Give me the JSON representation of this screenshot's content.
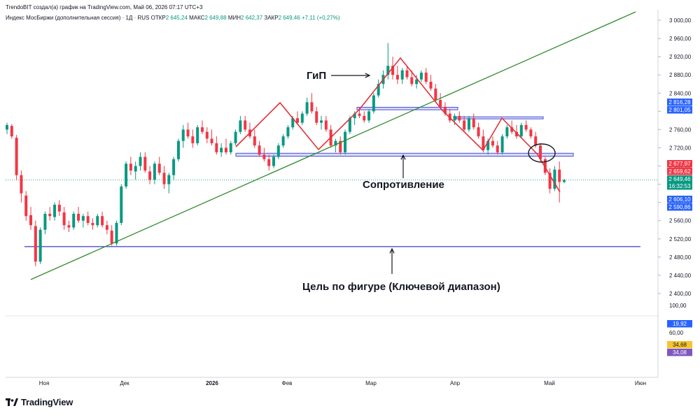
{
  "header": {
    "created_by": "TrendoBIT создал(а) график на TradingView.com, Май 06, 2026 07:17 UTC+3",
    "instrument": "Индекс МосБиржи (дополнительная сессия) · 1Д · RUS",
    "open_label": "ОТКР",
    "open_value": "2 645,24",
    "high_label": "МАКС",
    "high_value": "2 649,88",
    "low_label": "МИН",
    "low_value": "2 642,37",
    "close_label": "ЗАКР",
    "close_value": "2 649,46",
    "change_value": "+7,11 (+0,27%)"
  },
  "logo": {
    "text": "TradingView"
  },
  "annotations": {
    "hns": "ГиП",
    "resistance": "Сопротивление",
    "target": "Цель по фигуре (Ключевой диапазон)"
  },
  "colors": {
    "up": "#089981",
    "down": "#f23645",
    "pattern": "#e0313a",
    "trendline": "#2e8b2e",
    "zone_fill": "#c9cdf7",
    "zone_stroke": "#4a4fd6",
    "target_line": "#3a3fbf",
    "badge_blue": "#2962ff",
    "badge_red": "#f23645",
    "badge_green": "#089981",
    "badge_yellow": "#f7c531",
    "badge_purple": "#7e57c2"
  },
  "chart_data": {
    "type": "candlestick",
    "timeframe": "1Д",
    "price_axis": {
      "range": [
        2370,
        3010
      ],
      "ticks": [
        "3 000,00",
        "2 960,00",
        "2 920,00",
        "2 880,00",
        "2 840,00",
        "2 800,00",
        "2 760,00",
        "2 720,00",
        "2 680,00",
        "2 640,00",
        "2 600,00",
        "2 560,00",
        "2 520,00",
        "2 480,00",
        "2 440,00",
        "2 400,00"
      ]
    },
    "indicator_axis": {
      "ticks": [
        "100,00",
        "60,00"
      ]
    },
    "time_axis": [
      "Ноя",
      "Дек",
      "2026",
      "Фев",
      "Мар",
      "Апр",
      "Май",
      "Июн"
    ],
    "badges": [
      {
        "text": "2 816,28",
        "color": "blue"
      },
      {
        "text": "2 801,05",
        "color": "blue"
      },
      {
        "text": "2 677,97",
        "color": "red"
      },
      {
        "text": "2 659,62",
        "color": "red"
      },
      {
        "text": "2 649,46",
        "color": "green"
      },
      {
        "text": "16:32:53",
        "color": "green"
      },
      {
        "text": "2 606,10",
        "color": "blue"
      },
      {
        "text": "2 590,86",
        "color": "blue"
      },
      {
        "text": "19,92",
        "color": "blue"
      },
      {
        "text": "34,68",
        "color": "yellow"
      },
      {
        "text": "34,08",
        "color": "purple"
      }
    ],
    "levels": {
      "resistance_zone": [
        2703,
        2708
      ],
      "upper_zone_1": [
        2805,
        2809
      ],
      "upper_zone_2": [
        2785,
        2788
      ],
      "target": 2503
    },
    "candles": [
      [
        2760,
        2775,
        2750,
        2770
      ],
      [
        2768,
        2772,
        2740,
        2745
      ],
      [
        2742,
        2748,
        2650,
        2660
      ],
      [
        2660,
        2670,
        2600,
        2620
      ],
      [
        2615,
        2625,
        2560,
        2570
      ],
      [
        2572,
        2590,
        2540,
        2550
      ],
      [
        2548,
        2560,
        2460,
        2470
      ],
      [
        2470,
        2545,
        2465,
        2540
      ],
      [
        2540,
        2580,
        2530,
        2575
      ],
      [
        2575,
        2590,
        2560,
        2570
      ],
      [
        2568,
        2600,
        2560,
        2595
      ],
      [
        2595,
        2605,
        2570,
        2580
      ],
      [
        2578,
        2590,
        2540,
        2550
      ],
      [
        2550,
        2560,
        2535,
        2545
      ],
      [
        2545,
        2580,
        2540,
        2575
      ],
      [
        2575,
        2590,
        2555,
        2560
      ],
      [
        2560,
        2575,
        2545,
        2570
      ],
      [
        2570,
        2580,
        2550,
        2555
      ],
      [
        2555,
        2565,
        2540,
        2550
      ],
      [
        2550,
        2575,
        2545,
        2570
      ],
      [
        2570,
        2580,
        2545,
        2550
      ],
      [
        2550,
        2560,
        2530,
        2540
      ],
      [
        2538,
        2550,
        2505,
        2510
      ],
      [
        2510,
        2560,
        2505,
        2555
      ],
      [
        2555,
        2640,
        2550,
        2635
      ],
      [
        2635,
        2690,
        2630,
        2685
      ],
      [
        2685,
        2700,
        2660,
        2670
      ],
      [
        2668,
        2690,
        2650,
        2680
      ],
      [
        2680,
        2710,
        2670,
        2700
      ],
      [
        2700,
        2710,
        2665,
        2670
      ],
      [
        2668,
        2680,
        2640,
        2650
      ],
      [
        2650,
        2690,
        2640,
        2685
      ],
      [
        2685,
        2700,
        2660,
        2665
      ],
      [
        2665,
        2680,
        2630,
        2640
      ],
      [
        2640,
        2665,
        2620,
        2660
      ],
      [
        2660,
        2700,
        2650,
        2695
      ],
      [
        2695,
        2740,
        2690,
        2735
      ],
      [
        2735,
        2770,
        2720,
        2760
      ],
      [
        2760,
        2775,
        2740,
        2745
      ],
      [
        2745,
        2760,
        2720,
        2730
      ],
      [
        2730,
        2770,
        2725,
        2765
      ],
      [
        2765,
        2780,
        2750,
        2755
      ],
      [
        2755,
        2765,
        2730,
        2740
      ],
      [
        2740,
        2760,
        2725,
        2730
      ],
      [
        2730,
        2745,
        2705,
        2710
      ],
      [
        2710,
        2730,
        2700,
        2720
      ],
      [
        2720,
        2740,
        2705,
        2710
      ],
      [
        2710,
        2735,
        2705,
        2730
      ],
      [
        2730,
        2760,
        2725,
        2755
      ],
      [
        2755,
        2790,
        2750,
        2780
      ],
      [
        2780,
        2790,
        2755,
        2760
      ],
      [
        2760,
        2775,
        2740,
        2745
      ],
      [
        2745,
        2760,
        2720,
        2725
      ],
      [
        2725,
        2735,
        2700,
        2705
      ],
      [
        2705,
        2720,
        2690,
        2695
      ],
      [
        2695,
        2705,
        2670,
        2680
      ],
      [
        2680,
        2705,
        2675,
        2700
      ],
      [
        2700,
        2730,
        2695,
        2725
      ],
      [
        2725,
        2750,
        2720,
        2745
      ],
      [
        2745,
        2770,
        2740,
        2765
      ],
      [
        2765,
        2790,
        2760,
        2785
      ],
      [
        2785,
        2800,
        2770,
        2775
      ],
      [
        2775,
        2800,
        2770,
        2795
      ],
      [
        2795,
        2830,
        2790,
        2820
      ],
      [
        2820,
        2840,
        2795,
        2800
      ],
      [
        2800,
        2810,
        2770,
        2775
      ],
      [
        2775,
        2790,
        2760,
        2780
      ],
      [
        2780,
        2790,
        2755,
        2760
      ],
      [
        2760,
        2770,
        2720,
        2725
      ],
      [
        2725,
        2740,
        2710,
        2735
      ],
      [
        2735,
        2745,
        2705,
        2710
      ],
      [
        2710,
        2760,
        2705,
        2755
      ],
      [
        2755,
        2790,
        2750,
        2785
      ],
      [
        2785,
        2800,
        2770,
        2795
      ],
      [
        2795,
        2810,
        2785,
        2790
      ],
      [
        2790,
        2800,
        2775,
        2780
      ],
      [
        2780,
        2805,
        2775,
        2800
      ],
      [
        2800,
        2840,
        2795,
        2835
      ],
      [
        2835,
        2870,
        2830,
        2860
      ],
      [
        2860,
        2890,
        2850,
        2880
      ],
      [
        2880,
        2950,
        2870,
        2900
      ],
      [
        2900,
        2920,
        2870,
        2880
      ],
      [
        2880,
        2900,
        2860,
        2870
      ],
      [
        2870,
        2895,
        2860,
        2890
      ],
      [
        2890,
        2900,
        2870,
        2875
      ],
      [
        2875,
        2890,
        2855,
        2860
      ],
      [
        2860,
        2880,
        2850,
        2870
      ],
      [
        2870,
        2890,
        2865,
        2885
      ],
      [
        2885,
        2895,
        2860,
        2865
      ],
      [
        2865,
        2880,
        2845,
        2850
      ],
      [
        2850,
        2860,
        2820,
        2825
      ],
      [
        2825,
        2840,
        2805,
        2810
      ],
      [
        2810,
        2820,
        2790,
        2795
      ],
      [
        2795,
        2805,
        2775,
        2780
      ],
      [
        2780,
        2795,
        2770,
        2790
      ],
      [
        2790,
        2800,
        2775,
        2780
      ],
      [
        2780,
        2790,
        2755,
        2760
      ],
      [
        2760,
        2790,
        2755,
        2785
      ],
      [
        2785,
        2795,
        2760,
        2765
      ],
      [
        2765,
        2775,
        2740,
        2745
      ],
      [
        2745,
        2760,
        2710,
        2715
      ],
      [
        2715,
        2740,
        2705,
        2735
      ],
      [
        2735,
        2745,
        2720,
        2725
      ],
      [
        2725,
        2735,
        2705,
        2710
      ],
      [
        2710,
        2750,
        2705,
        2745
      ],
      [
        2745,
        2770,
        2740,
        2765
      ],
      [
        2765,
        2780,
        2750,
        2755
      ],
      [
        2755,
        2770,
        2740,
        2745
      ],
      [
        2745,
        2775,
        2740,
        2770
      ],
      [
        2770,
        2780,
        2755,
        2760
      ],
      [
        2760,
        2765,
        2740,
        2745
      ],
      [
        2745,
        2755,
        2720,
        2725
      ],
      [
        2725,
        2730,
        2690,
        2695
      ],
      [
        2695,
        2700,
        2660,
        2665
      ],
      [
        2665,
        2675,
        2620,
        2630
      ],
      [
        2630,
        2680,
        2625,
        2672
      ],
      [
        2672,
        2690,
        2600,
        2645
      ],
      [
        2645,
        2652,
        2642,
        2649
      ]
    ]
  }
}
